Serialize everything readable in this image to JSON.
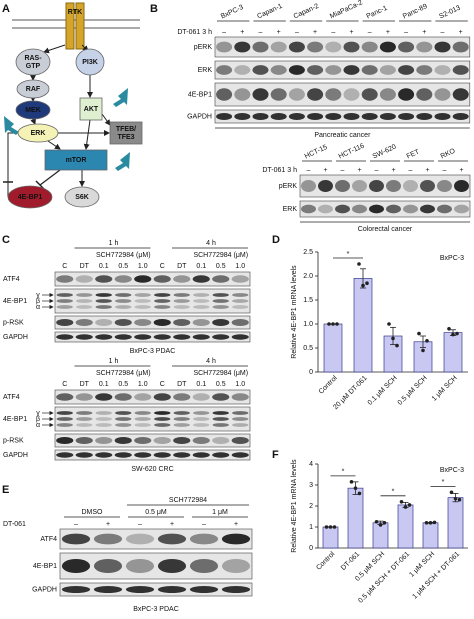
{
  "panel_labels": [
    "A",
    "B",
    "C",
    "D",
    "E",
    "F"
  ],
  "pathway": {
    "nodes": [
      [
        "RTK"
      ],
      [
        "RAS-",
        "GTP"
      ],
      [
        "PI3K"
      ],
      [
        "RAF"
      ],
      [
        "MEK"
      ],
      [
        "AKT"
      ],
      [
        "ERK"
      ],
      [
        "TFEB/",
        "TFE3"
      ],
      [
        "mTOR"
      ],
      [
        "4E-BP1"
      ],
      [
        "S6K"
      ]
    ]
  },
  "panel_b": {
    "pancreatic": {
      "cell_lines": [
        "BxPC-3",
        "Capan-1",
        "Capan-2",
        "MiaPaCa-2",
        "Panc-1",
        "Panc-89",
        "S2-013"
      ],
      "treatment": "DT-061 3 h",
      "lanes": [
        "–",
        "+",
        "–",
        "+",
        "–",
        "+",
        "–",
        "+",
        "–",
        "+",
        "–",
        "+",
        "–",
        "+"
      ],
      "rows": [
        "pERK",
        "ERK",
        "4E-BP1",
        "GAPDH"
      ],
      "caption": "Pancreatic cancer"
    },
    "colorectal": {
      "cell_lines": [
        "HCT-15",
        "HCT-116",
        "SW-620",
        "FET",
        "RKO"
      ],
      "treatment": "DT-061 3 h",
      "lanes": [
        "–",
        "+",
        "–",
        "+",
        "–",
        "+",
        "–",
        "+",
        "–",
        "+"
      ],
      "rows": [
        "pERK",
        "ERK"
      ],
      "caption": "Colorectal cancer"
    }
  },
  "panel_c": [
    {
      "times": [
        "1 h",
        "4 h"
      ],
      "drug_labels": [
        "SCH772984 (μM)",
        "SCH772984 (μM)"
      ],
      "lanes": [
        "C",
        "DT",
        "0.1",
        "0.5",
        "1.0",
        "C",
        "DT",
        "0.1",
        "0.5",
        "1.0"
      ],
      "rows": [
        "ATF4",
        "4E-BP1",
        "p-RSK",
        "GAPDH"
      ],
      "isoforms": [
        "γ",
        "β",
        "α"
      ],
      "caption": "BxPC-3 PDAC"
    },
    {
      "times": [
        "1 h",
        "4 h"
      ],
      "drug_labels": [
        "SCH772984 (μM)",
        "SCH772984 (μM)"
      ],
      "lanes": [
        "C",
        "DT",
        "0.1",
        "0.5",
        "1.0",
        "C",
        "DT",
        "0.1",
        "0.5",
        "1.0"
      ],
      "rows": [
        "ATF4",
        "4E-BP1",
        "p-RSK",
        "GAPDH"
      ],
      "isoforms": [
        "γ",
        "β",
        "α"
      ],
      "caption": "SW-620 CRC"
    }
  ],
  "panel_e": {
    "drug": "SCH772984",
    "groups": [
      "DMSO",
      "0.5 μM",
      "1 μM"
    ],
    "treatment": "DT-061",
    "lanes": [
      "–",
      "+",
      "–",
      "+",
      "–",
      "+"
    ],
    "rows": [
      "ATF4",
      "4E-BP1",
      "GAPDH"
    ],
    "caption": "BxPC-3 PDAC"
  },
  "chart_data": [
    {
      "type": "bar",
      "title": "BxPC-3",
      "y_label": "Relative 4E-BP1 mRNA levels",
      "categories": [
        "Control",
        "20 μM DT-061",
        "0.1 μM SCH",
        "0.5 μM SCH",
        "1 μM SCH"
      ],
      "values": [
        1,
        1.95,
        0.75,
        0.63,
        0.82
      ],
      "errors": [
        0,
        0.2,
        0.18,
        0.12,
        0.06
      ],
      "points": [
        [
          1,
          1,
          1
        ],
        [
          2.25,
          1.8,
          1.85
        ],
        [
          1,
          0.7,
          0.55
        ],
        [
          0.8,
          0.45,
          0.65
        ],
        [
          0.9,
          0.78,
          0.8
        ]
      ],
      "color": "#c8c8f2",
      "ylim": [
        0,
        2.5
      ],
      "yticks": [
        0,
        0.5,
        {
          "value": 1,
          "label": "1.0"
        },
        1.5,
        {
          "value": 2,
          "label": "2.0"
        },
        2.5
      ],
      "annotations": [
        "*"
      ]
    },
    {
      "type": "bar",
      "title": "BxPC-3",
      "y_label": "Relative 4E-BP1 mRNA levels",
      "categories": [
        "Control",
        "DT-061",
        "0.5 μM SCH",
        "0.5 μM SCH + DT-061",
        "1 μM SCH",
        "1 μM SCH + DT-061"
      ],
      "values": [
        1,
        2.85,
        1.2,
        2.05,
        1.2,
        2.4
      ],
      "errors": [
        0,
        0.3,
        0.08,
        0.12,
        0.02,
        0.2
      ],
      "points": [
        [
          1,
          1,
          1
        ],
        [
          3.15,
          2.85,
          2.6
        ],
        [
          1.25,
          1.1,
          1.2
        ],
        [
          2.2,
          1.95,
          2.05
        ],
        [
          1.2,
          1.2,
          1.22
        ],
        [
          2.65,
          2.35,
          2.3
        ]
      ],
      "color": "#c8c8f2",
      "ylim": [
        0,
        4
      ],
      "yticks": [
        0,
        1,
        2,
        3,
        4
      ],
      "annotations": [
        "*",
        "*",
        "*"
      ]
    }
  ]
}
